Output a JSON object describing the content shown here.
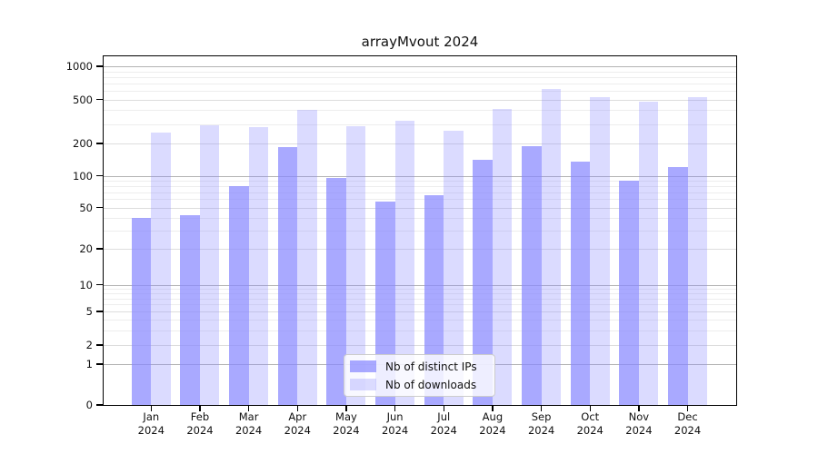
{
  "title": "arrayMvout 2024",
  "chart_data": {
    "type": "bar",
    "title": "arrayMvout 2024",
    "categories": [
      "Jan",
      "Feb",
      "Mar",
      "Apr",
      "May",
      "Jun",
      "Jul",
      "Aug",
      "Sep",
      "Oct",
      "Nov",
      "Dec"
    ],
    "year_label": "2024",
    "series": [
      {
        "name": "Nb of distinct IPs",
        "values": [
          40,
          42,
          80,
          185,
          95,
          57,
          65,
          140,
          188,
          135,
          90,
          120
        ],
        "color": "#8888ff",
        "opacity": 0.72
      },
      {
        "name": "Nb of downloads",
        "values": [
          250,
          290,
          280,
          400,
          285,
          320,
          260,
          410,
          620,
          520,
          475,
          525
        ],
        "color": "#8888ff",
        "opacity": 0.3
      }
    ],
    "yscale": "symlog",
    "yticks": [
      0,
      1,
      2,
      5,
      10,
      20,
      50,
      100,
      200,
      500,
      1000
    ],
    "ylim": [
      0,
      1300
    ],
    "grid": "horizontal",
    "legend_position": "bottom-center",
    "xlabel": "",
    "ylabel": ""
  },
  "colors": {
    "bar_base": "#8888ff",
    "grid_major": "#b3b3b3",
    "grid_minor": "#dddddd",
    "spine": "#000000"
  }
}
